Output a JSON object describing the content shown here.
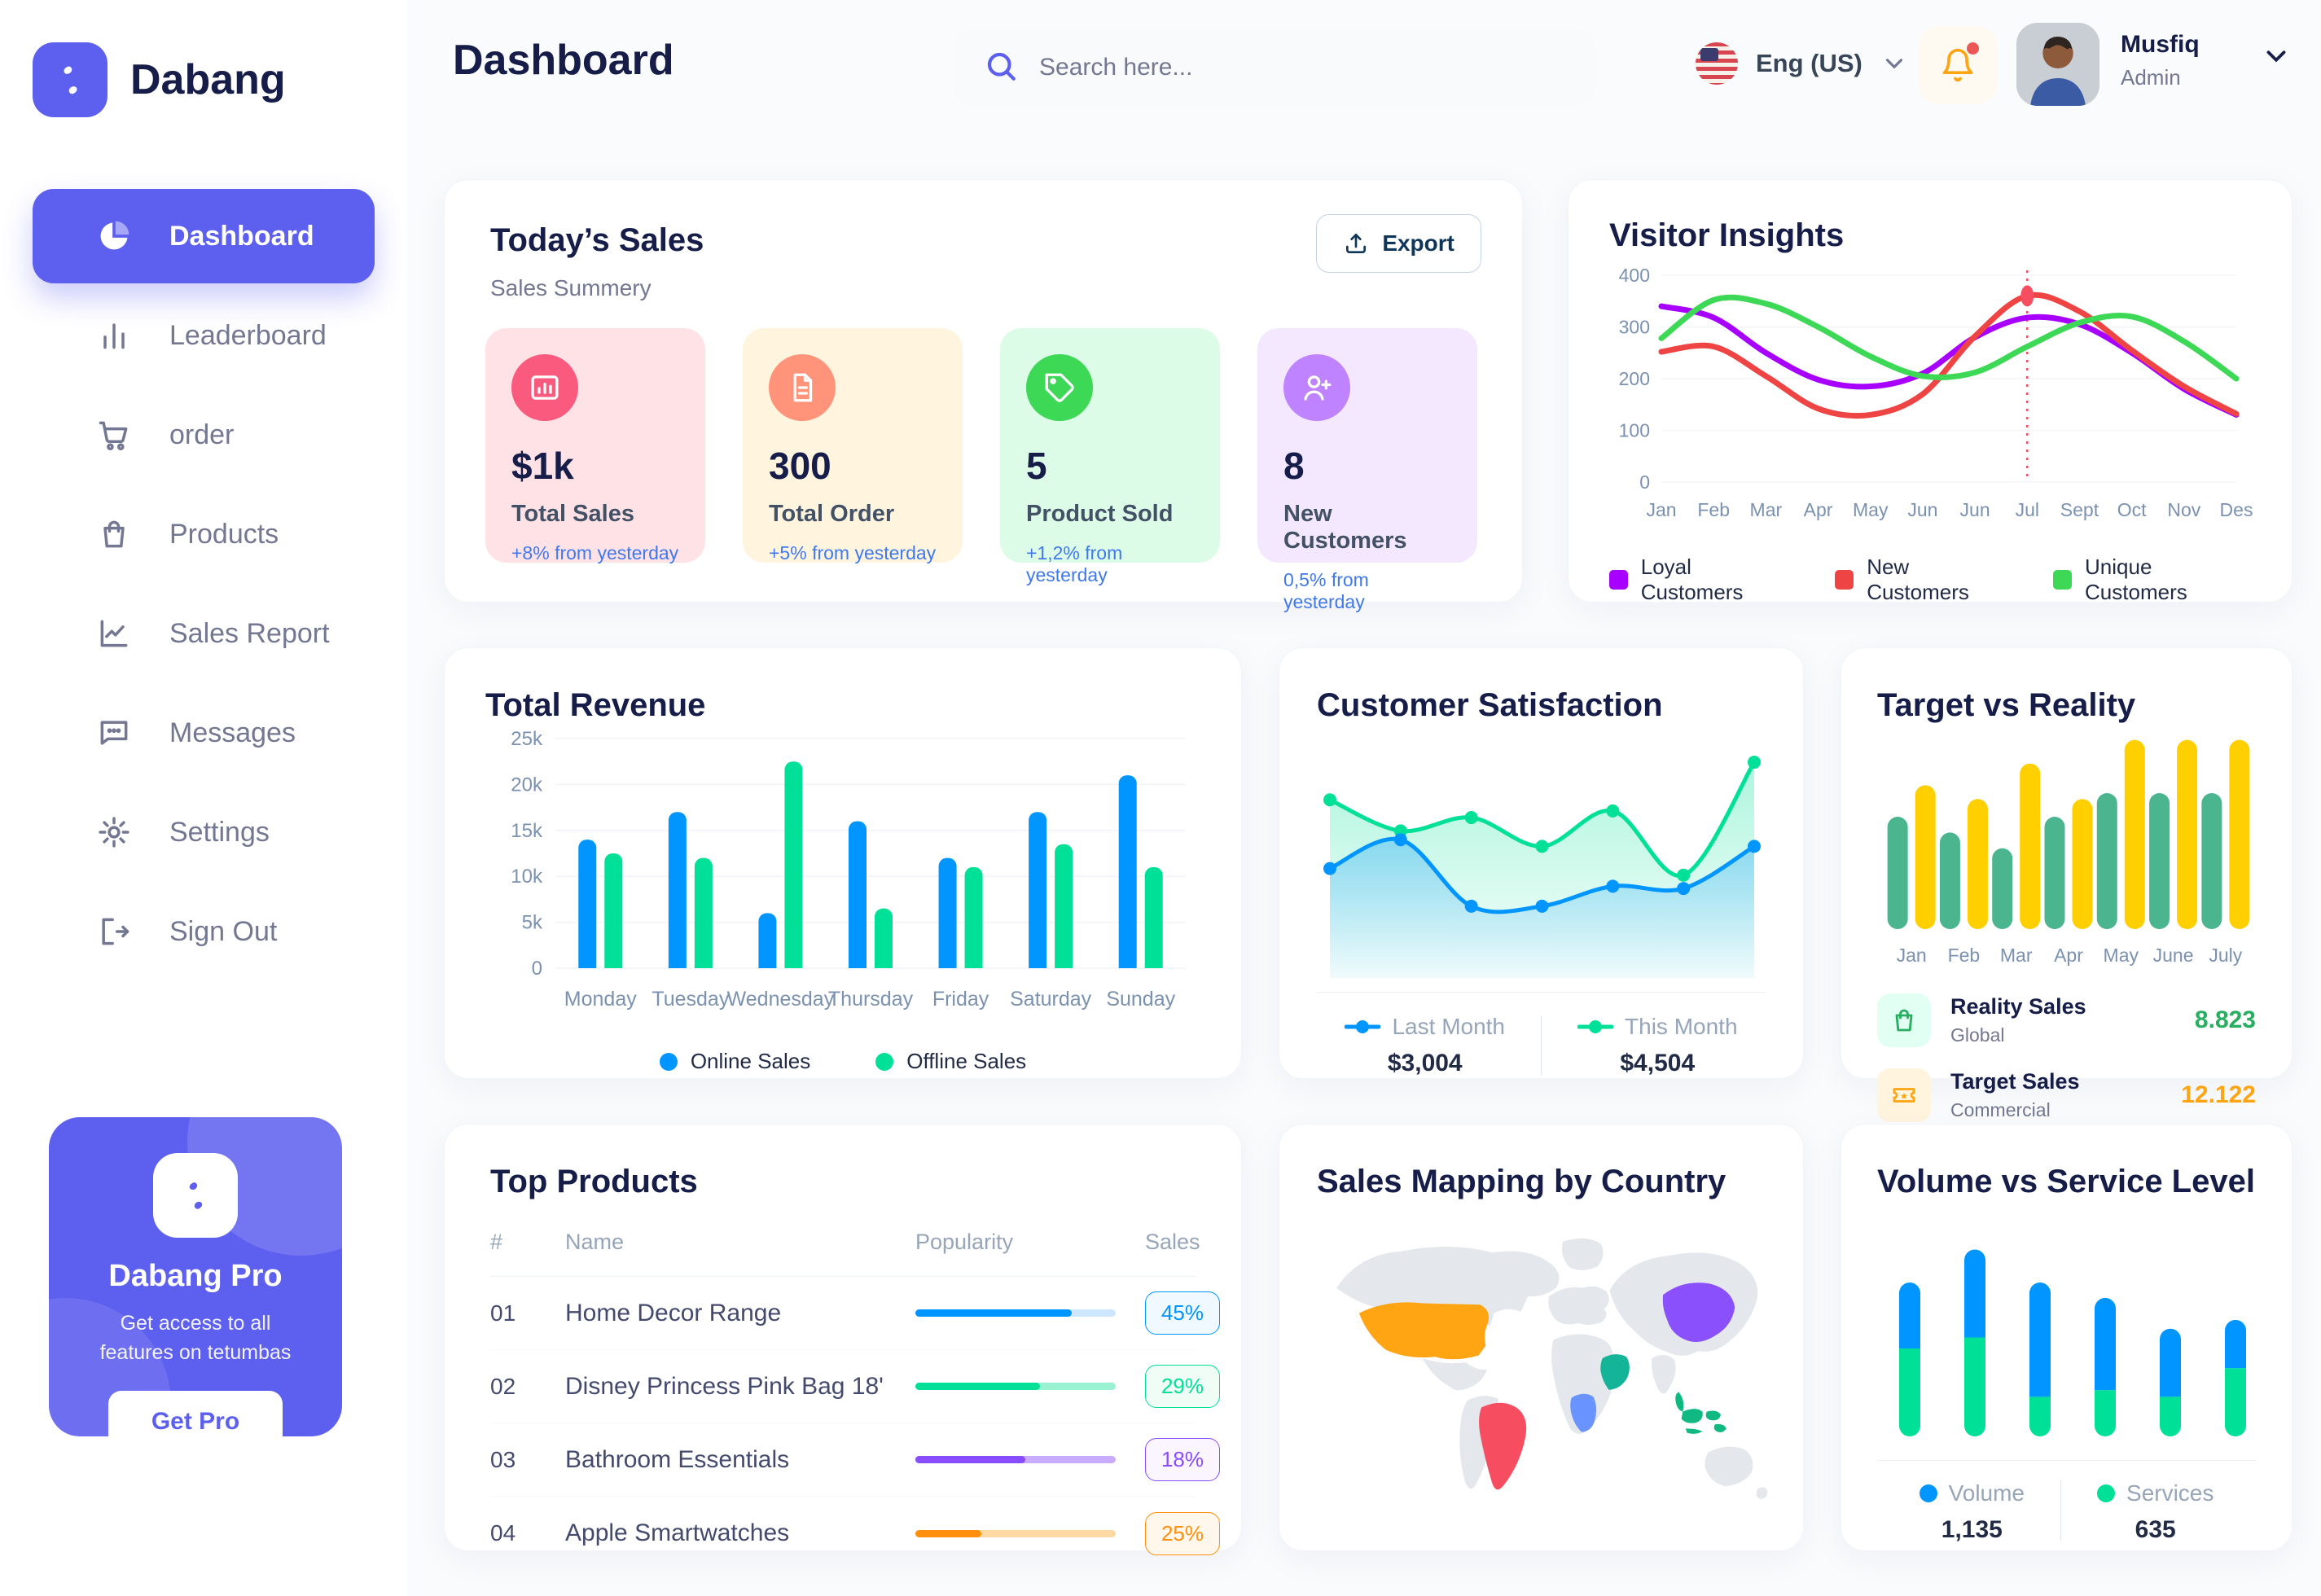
{
  "brand": {
    "name": "Dabang"
  },
  "sidebar": {
    "items": [
      {
        "key": "dashboard",
        "label": "Dashboard",
        "icon": "pie-chart-icon",
        "active": true
      },
      {
        "key": "leaderboard",
        "label": "Leaderboard",
        "icon": "bar-chart-icon",
        "active": false
      },
      {
        "key": "order",
        "label": "order",
        "icon": "cart-icon",
        "active": false
      },
      {
        "key": "products",
        "label": "Products",
        "icon": "bag-icon",
        "active": false
      },
      {
        "key": "sales-report",
        "label": "Sales Report",
        "icon": "line-chart-icon",
        "active": false
      },
      {
        "key": "messages",
        "label": "Messages",
        "icon": "message-icon",
        "active": false
      },
      {
        "key": "settings",
        "label": "Settings",
        "icon": "gear-icon",
        "active": false
      },
      {
        "key": "sign-out",
        "label": "Sign Out",
        "icon": "sign-out-icon",
        "active": false
      }
    ],
    "pro": {
      "title": "Dabang Pro",
      "description": "Get access to all features on tetumbas",
      "button": "Get Pro"
    }
  },
  "header": {
    "title": "Dashboard",
    "search_placeholder": "Search here...",
    "language": "Eng (US)",
    "user": {
      "name": "Musfiq",
      "role": "Admin"
    }
  },
  "today_sales": {
    "title": "Today’s Sales",
    "subtitle": "Sales Summery",
    "export_label": "Export",
    "cards": [
      {
        "value": "$1k",
        "label": "Total Sales",
        "delta": "+8% from yesterday",
        "bg": "#FFE2E5",
        "icon_bg": "#FA5A7D",
        "icon": "stat-bar-chart-icon"
      },
      {
        "value": "300",
        "label": "Total Order",
        "delta": "+5% from yesterday",
        "bg": "#FFF4DE",
        "icon_bg": "#FF947A",
        "icon": "order-file-icon"
      },
      {
        "value": "5",
        "label": "Product Sold",
        "delta": "+1,2% from yesterday",
        "bg": "#DCFCE7",
        "icon_bg": "#3CD856",
        "icon": "tag-icon"
      },
      {
        "value": "8",
        "label": "New Customers",
        "delta": "0,5% from yesterday",
        "bg": "#F3E8FF",
        "icon_bg": "#BF83FF",
        "icon": "user-plus-icon"
      }
    ]
  },
  "chart_data": [
    {
      "id": "visitor_insights",
      "type": "line",
      "title": "Visitor Insights",
      "categories": [
        "Jan",
        "Feb",
        "Mar",
        "Apr",
        "May",
        "Jun",
        "Jun",
        "Jul",
        "Sept",
        "Oct",
        "Nov",
        "Des"
      ],
      "ylim": [
        0,
        400
      ],
      "yticks": [
        0,
        100,
        200,
        300,
        400
      ],
      "grid": true,
      "legend_position": "bottom",
      "series": [
        {
          "name": "Loyal Customers",
          "color": "#A700FF",
          "values": [
            340,
            318,
            250,
            198,
            185,
            210,
            280,
            318,
            305,
            250,
            180,
            130
          ]
        },
        {
          "name": "New Customers",
          "color": "#EF4444",
          "values": [
            252,
            262,
            205,
            142,
            130,
            170,
            282,
            360,
            330,
            255,
            185,
            132
          ]
        },
        {
          "name": "Unique Customers",
          "color": "#3CD856",
          "values": [
            278,
            352,
            345,
            300,
            243,
            205,
            212,
            262,
            308,
            320,
            272,
            200
          ]
        }
      ],
      "marker": {
        "series": "New Customers",
        "index": 7,
        "color": "#F64E60"
      }
    },
    {
      "id": "total_revenue",
      "type": "bar",
      "title": "Total Revenue",
      "categories": [
        "Monday",
        "Tuesday",
        "Wednesday",
        "Thursday",
        "Friday",
        "Saturday",
        "Sunday"
      ],
      "ylim": [
        0,
        25
      ],
      "yticks": [
        "0",
        "5k",
        "10k",
        "15k",
        "20k",
        "25k"
      ],
      "grid": true,
      "legend_position": "bottom",
      "series": [
        {
          "name": "Online Sales",
          "color": "#0095FF",
          "values": [
            14,
            17,
            6,
            16,
            12,
            17,
            21
          ]
        },
        {
          "name": "Offline Sales",
          "color": "#00E096",
          "values": [
            12.5,
            12,
            22.5,
            6.5,
            11,
            13.5,
            11
          ]
        }
      ]
    },
    {
      "id": "customer_satisfaction",
      "type": "area",
      "title": "Customer Satisfaction",
      "x": [
        1,
        2,
        3,
        4,
        5,
        6,
        7
      ],
      "ylim": [
        0,
        100
      ],
      "grid": false,
      "legend_position": "bottom",
      "series": [
        {
          "name": "Last Month",
          "color": "#0095FF",
          "total": "$3,004",
          "values": [
            45,
            58,
            28,
            28,
            37,
            36,
            55
          ]
        },
        {
          "name": "This Month",
          "color": "#00E096",
          "total": "$4,504",
          "values": [
            76,
            62,
            68,
            55,
            71,
            42,
            93
          ]
        }
      ]
    },
    {
      "id": "target_vs_reality",
      "type": "bar",
      "title": "Target vs Reality",
      "categories": [
        "Jan",
        "Feb",
        "Mar",
        "Apr",
        "May",
        "June",
        "July"
      ],
      "ylim": [
        0,
        100
      ],
      "grid": false,
      "legend_position": "bottom",
      "series": [
        {
          "name": "Reality Sales",
          "subtitle": "Global",
          "color": "#4AB58E",
          "icon_bg": "#E2FFF3",
          "icon": "bag-small-icon",
          "icon_color": "#27AE60",
          "value_label": "8.823",
          "value_color": "#27AE60",
          "values": [
            57,
            49,
            41,
            57,
            69,
            69,
            69
          ]
        },
        {
          "name": "Target Sales",
          "subtitle": "Commercial",
          "color": "#FFCF00",
          "icon_bg": "#FFF4DE",
          "icon": "ticket-icon",
          "icon_color": "#FFA412",
          "value_label": "12.122",
          "value_color": "#FFA412",
          "values": [
            73,
            66,
            84,
            66,
            96,
            96,
            96
          ]
        }
      ]
    },
    {
      "id": "volume_service",
      "type": "stacked-bar",
      "title": "Volume vs Service Level",
      "categories": [
        "1",
        "2",
        "3",
        "4",
        "5",
        "6"
      ],
      "ylim": [
        0,
        100
      ],
      "grid": false,
      "legend_position": "bottom",
      "series": [
        {
          "name": "Volume",
          "color": "#0095FF",
          "total": "1,135",
          "values": [
            30,
            40,
            52,
            42,
            31,
            22
          ]
        },
        {
          "name": "Services",
          "color": "#00E096",
          "total": "635",
          "values": [
            40,
            45,
            18,
            21,
            18,
            31
          ]
        }
      ]
    }
  ],
  "top_products": {
    "title": "Top Products",
    "headers": [
      "#",
      "Name",
      "Popularity",
      "Sales"
    ],
    "rows": [
      {
        "num": "01",
        "name": "Home Decor Range",
        "sales": "45%",
        "fill": 78,
        "color": "#0095FF",
        "track": "#CDE7FE",
        "badge_bg": "#F0F9FF"
      },
      {
        "num": "02",
        "name": "Disney Princess Pink Bag 18'",
        "sales": "29%",
        "fill": 62,
        "color": "#00E096",
        "track": "#9BF2D2",
        "badge_bg": "#F0FDF6"
      },
      {
        "num": "03",
        "name": "Bathroom Essentials",
        "sales": "18%",
        "fill": 55,
        "color": "#884DFF",
        "track": "#C9ABFF",
        "badge_bg": "#FAF5FF"
      },
      {
        "num": "04",
        "name": "Apple Smartwatches",
        "sales": "25%",
        "fill": 33,
        "color": "#FF8F0D",
        "track": "#FFD9A4",
        "badge_bg": "#FFF7EB"
      }
    ]
  },
  "sales_map": {
    "title": "Sales Mapping by Country",
    "base_color": "#E4E7EC",
    "countries": [
      {
        "key": "united-states",
        "name": "United States",
        "color": "#FFA412"
      },
      {
        "key": "brazil",
        "name": "Brazil",
        "color": "#F64E60"
      },
      {
        "key": "china",
        "name": "China",
        "color": "#8950FC"
      },
      {
        "key": "saudi-arabia",
        "name": "Saudi Arabia",
        "color": "#13B497"
      },
      {
        "key": "dr-congo",
        "name": "DR Congo",
        "color": "#6993FF"
      },
      {
        "key": "indonesia",
        "name": "Indonesia",
        "color": "#10B981"
      }
    ]
  }
}
